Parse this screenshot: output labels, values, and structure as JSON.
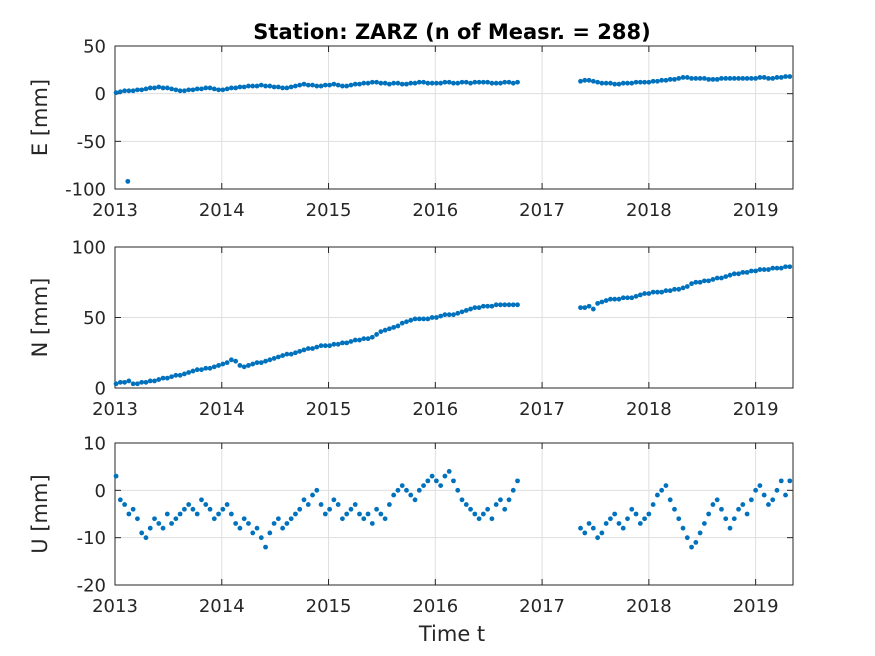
{
  "chart_data": {
    "type": "scatter",
    "title": "Station: ZARZ (n of Measr. = 288)",
    "xlabel": "Time t",
    "xlim": [
      2013.0,
      2019.35
    ],
    "xticks": [
      2013,
      2014,
      2015,
      2016,
      2017,
      2018,
      2019
    ],
    "grid": true,
    "marker_color": "#0072BD",
    "subplots": [
      {
        "id": "E",
        "ylabel": "E [mm]",
        "ylim": [
          -100,
          50
        ],
        "yticks": [
          50,
          0,
          -50,
          -100
        ],
        "series": [
          {
            "x": [
              2013.01,
              2013.05,
              2013.09,
              2013.13,
              2013.17,
              2013.21,
              2013.25,
              2013.29,
              2013.33,
              2013.37,
              2013.41,
              2013.45,
              2013.49,
              2013.53,
              2013.57,
              2013.61,
              2013.65,
              2013.69,
              2013.73,
              2013.77,
              2013.81,
              2013.85,
              2013.89,
              2013.93,
              2013.97,
              2014.01,
              2014.05,
              2014.09,
              2014.13,
              2014.17,
              2014.21,
              2014.25,
              2014.29,
              2014.33,
              2014.37,
              2014.41,
              2014.45,
              2014.49,
              2014.53,
              2014.57,
              2014.61,
              2014.65,
              2014.69,
              2014.73,
              2014.77,
              2014.81,
              2014.85,
              2014.89,
              2014.93,
              2014.97,
              2015.01,
              2015.05,
              2015.09,
              2015.13,
              2015.17,
              2015.21,
              2015.25,
              2015.29,
              2015.33,
              2015.37,
              2015.41,
              2015.45,
              2015.49,
              2015.53,
              2015.57,
              2015.61,
              2015.65,
              2015.69,
              2015.73,
              2015.77,
              2015.81,
              2015.85,
              2015.89,
              2015.93,
              2015.97,
              2016.01,
              2016.05,
              2016.09,
              2016.13,
              2016.17,
              2016.21,
              2016.25,
              2016.29,
              2016.33,
              2016.37,
              2016.41,
              2016.45,
              2016.49,
              2016.53,
              2016.57,
              2016.61,
              2016.65,
              2016.69,
              2016.73,
              2016.77,
              2017.36,
              2017.4,
              2017.44,
              2017.48,
              2017.52,
              2017.56,
              2017.6,
              2017.64,
              2017.68,
              2017.72,
              2017.76,
              2017.8,
              2017.84,
              2017.88,
              2017.92,
              2017.96,
              2018.0,
              2018.04,
              2018.08,
              2018.12,
              2018.16,
              2018.2,
              2018.24,
              2018.28,
              2018.32,
              2018.36,
              2018.4,
              2018.44,
              2018.48,
              2018.52,
              2018.56,
              2018.6,
              2018.64,
              2018.68,
              2018.72,
              2018.76,
              2018.8,
              2018.84,
              2018.88,
              2018.92,
              2018.96,
              2019.0,
              2019.04,
              2019.08,
              2019.12,
              2019.16,
              2019.2,
              2019.24,
              2019.28,
              2019.32,
              2013.12
            ],
            "y": [
              1,
              2,
              3,
              3,
              3,
              4,
              4,
              5,
              6,
              6,
              7,
              6,
              6,
              5,
              4,
              3,
              3,
              4,
              4,
              5,
              5,
              6,
              6,
              5,
              4,
              4,
              5,
              6,
              6,
              7,
              7,
              8,
              8,
              8,
              9,
              8,
              8,
              7,
              7,
              6,
              6,
              7,
              8,
              9,
              10,
              9,
              9,
              8,
              8,
              9,
              9,
              10,
              9,
              8,
              8,
              9,
              10,
              10,
              11,
              11,
              12,
              12,
              11,
              11,
              10,
              11,
              11,
              10,
              10,
              11,
              11,
              12,
              12,
              11,
              11,
              11,
              11,
              12,
              12,
              11,
              11,
              12,
              12,
              11,
              12,
              12,
              12,
              12,
              11,
              11,
              11,
              12,
              12,
              11,
              12,
              13,
              14,
              14,
              13,
              12,
              11,
              11,
              11,
              10,
              10,
              11,
              11,
              11,
              12,
              12,
              12,
              12,
              13,
              13,
              14,
              14,
              15,
              15,
              16,
              17,
              17,
              16,
              16,
              16,
              16,
              15,
              15,
              15,
              16,
              16,
              16,
              16,
              16,
              16,
              16,
              16,
              16,
              17,
              17,
              16,
              16,
              17,
              17,
              18,
              18,
              -92
            ]
          }
        ]
      },
      {
        "id": "N",
        "ylabel": "N [mm]",
        "ylim": [
          0,
          100
        ],
        "yticks": [
          100,
          50,
          0
        ],
        "series": [
          {
            "x": [
              2013.01,
              2013.05,
              2013.09,
              2013.13,
              2013.17,
              2013.21,
              2013.25,
              2013.29,
              2013.33,
              2013.37,
              2013.41,
              2013.45,
              2013.49,
              2013.53,
              2013.57,
              2013.61,
              2013.65,
              2013.69,
              2013.73,
              2013.77,
              2013.81,
              2013.85,
              2013.89,
              2013.93,
              2013.97,
              2014.01,
              2014.05,
              2014.09,
              2014.13,
              2014.17,
              2014.21,
              2014.25,
              2014.29,
              2014.33,
              2014.37,
              2014.41,
              2014.45,
              2014.49,
              2014.53,
              2014.57,
              2014.61,
              2014.65,
              2014.69,
              2014.73,
              2014.77,
              2014.81,
              2014.85,
              2014.89,
              2014.93,
              2014.97,
              2015.01,
              2015.05,
              2015.09,
              2015.13,
              2015.17,
              2015.21,
              2015.25,
              2015.29,
              2015.33,
              2015.37,
              2015.41,
              2015.45,
              2015.49,
              2015.53,
              2015.57,
              2015.61,
              2015.65,
              2015.69,
              2015.73,
              2015.77,
              2015.81,
              2015.85,
              2015.89,
              2015.93,
              2015.97,
              2016.01,
              2016.05,
              2016.09,
              2016.13,
              2016.17,
              2016.21,
              2016.25,
              2016.29,
              2016.33,
              2016.37,
              2016.41,
              2016.45,
              2016.49,
              2016.53,
              2016.57,
              2016.61,
              2016.65,
              2016.69,
              2016.73,
              2016.77,
              2017.36,
              2017.4,
              2017.44,
              2017.48,
              2017.52,
              2017.56,
              2017.6,
              2017.64,
              2017.68,
              2017.72,
              2017.76,
              2017.8,
              2017.84,
              2017.88,
              2017.92,
              2017.96,
              2018.0,
              2018.04,
              2018.08,
              2018.12,
              2018.16,
              2018.2,
              2018.24,
              2018.28,
              2018.32,
              2018.36,
              2018.4,
              2018.44,
              2018.48,
              2018.52,
              2018.56,
              2018.6,
              2018.64,
              2018.68,
              2018.72,
              2018.76,
              2018.8,
              2018.84,
              2018.88,
              2018.92,
              2018.96,
              2019.0,
              2019.04,
              2019.08,
              2019.12,
              2019.16,
              2019.2,
              2019.24,
              2019.28,
              2019.32
            ],
            "y": [
              3,
              4,
              4,
              5,
              3,
              3,
              4,
              4,
              5,
              5,
              6,
              7,
              7,
              8,
              9,
              9,
              10,
              11,
              12,
              13,
              13,
              14,
              14,
              15,
              16,
              17,
              18,
              20,
              19,
              16,
              15,
              16,
              17,
              18,
              18,
              19,
              20,
              21,
              22,
              23,
              24,
              24,
              25,
              26,
              27,
              28,
              28,
              29,
              30,
              30,
              30,
              31,
              31,
              32,
              32,
              33,
              34,
              34,
              35,
              35,
              36,
              38,
              40,
              41,
              42,
              43,
              44,
              46,
              47,
              48,
              49,
              49,
              49,
              49,
              50,
              50,
              51,
              52,
              52,
              52,
              53,
              54,
              55,
              56,
              57,
              57,
              58,
              58,
              58,
              59,
              59,
              59,
              59,
              59,
              59,
              57,
              57,
              58,
              56,
              60,
              61,
              62,
              63,
              63,
              63,
              64,
              64,
              64,
              65,
              66,
              67,
              67,
              68,
              68,
              68,
              69,
              69,
              70,
              70,
              71,
              72,
              74,
              75,
              75,
              76,
              76,
              77,
              78,
              78,
              79,
              80,
              81,
              81,
              82,
              82,
              83,
              83,
              84,
              84,
              84,
              85,
              85,
              85,
              86,
              86
            ]
          }
        ]
      },
      {
        "id": "U",
        "ylabel": "U [mm]",
        "ylim": [
          -20,
          10
        ],
        "yticks": [
          10,
          0,
          -10,
          -20
        ],
        "series": [
          {
            "x": [
              2013.01,
              2013.05,
              2013.09,
              2013.13,
              2013.17,
              2013.21,
              2013.25,
              2013.29,
              2013.33,
              2013.37,
              2013.41,
              2013.45,
              2013.49,
              2013.53,
              2013.57,
              2013.61,
              2013.65,
              2013.69,
              2013.73,
              2013.77,
              2013.81,
              2013.85,
              2013.89,
              2013.93,
              2013.97,
              2014.01,
              2014.05,
              2014.09,
              2014.13,
              2014.17,
              2014.21,
              2014.25,
              2014.29,
              2014.33,
              2014.37,
              2014.41,
              2014.45,
              2014.49,
              2014.53,
              2014.57,
              2014.61,
              2014.65,
              2014.69,
              2014.73,
              2014.77,
              2014.81,
              2014.85,
              2014.89,
              2014.93,
              2014.97,
              2015.01,
              2015.05,
              2015.09,
              2015.13,
              2015.17,
              2015.21,
              2015.25,
              2015.29,
              2015.33,
              2015.37,
              2015.41,
              2015.45,
              2015.49,
              2015.53,
              2015.57,
              2015.61,
              2015.65,
              2015.69,
              2015.73,
              2015.77,
              2015.81,
              2015.85,
              2015.89,
              2015.93,
              2015.97,
              2016.01,
              2016.05,
              2016.09,
              2016.13,
              2016.17,
              2016.21,
              2016.25,
              2016.29,
              2016.33,
              2016.37,
              2016.41,
              2016.45,
              2016.49,
              2016.53,
              2016.57,
              2016.61,
              2016.65,
              2016.69,
              2016.73,
              2016.77,
              2017.36,
              2017.4,
              2017.44,
              2017.48,
              2017.52,
              2017.56,
              2017.6,
              2017.64,
              2017.68,
              2017.72,
              2017.76,
              2017.8,
              2017.84,
              2017.88,
              2017.92,
              2017.96,
              2018.0,
              2018.04,
              2018.08,
              2018.12,
              2018.16,
              2018.2,
              2018.24,
              2018.28,
              2018.32,
              2018.36,
              2018.4,
              2018.44,
              2018.48,
              2018.52,
              2018.56,
              2018.6,
              2018.64,
              2018.68,
              2018.72,
              2018.76,
              2018.8,
              2018.84,
              2018.88,
              2018.92,
              2018.96,
              2019.0,
              2019.04,
              2019.08,
              2019.12,
              2019.16,
              2019.2,
              2019.24,
              2019.28,
              2019.32
            ],
            "y": [
              3,
              -2,
              -3,
              -5,
              -4,
              -6,
              -9,
              -10,
              -8,
              -6,
              -7,
              -8,
              -5,
              -7,
              -6,
              -5,
              -4,
              -3,
              -4,
              -5,
              -2,
              -3,
              -4,
              -6,
              -5,
              -4,
              -3,
              -5,
              -7,
              -8,
              -6,
              -7,
              -9,
              -8,
              -10,
              -12,
              -9,
              -7,
              -6,
              -8,
              -7,
              -6,
              -5,
              -4,
              -2,
              -3,
              -1,
              0,
              -3,
              -5,
              -4,
              -2,
              -3,
              -6,
              -5,
              -4,
              -3,
              -5,
              -6,
              -5,
              -7,
              -4,
              -5,
              -6,
              -3,
              -1,
              0,
              1,
              0,
              -1,
              -2,
              0,
              1,
              2,
              3,
              2,
              1,
              3,
              4,
              2,
              0,
              -2,
              -3,
              -4,
              -5,
              -6,
              -5,
              -4,
              -6,
              -3,
              -2,
              -4,
              -2,
              0,
              2,
              -8,
              -9,
              -7,
              -8,
              -10,
              -9,
              -7,
              -6,
              -5,
              -7,
              -8,
              -6,
              -4,
              -5,
              -7,
              -6,
              -5,
              -3,
              -1,
              0,
              1,
              -2,
              -4,
              -6,
              -8,
              -10,
              -12,
              -11,
              -9,
              -7,
              -5,
              -3,
              -2,
              -4,
              -6,
              -8,
              -6,
              -4,
              -3,
              -5,
              -2,
              0,
              1,
              -1,
              -3,
              -2,
              0,
              2,
              -1,
              2
            ]
          }
        ]
      }
    ]
  }
}
